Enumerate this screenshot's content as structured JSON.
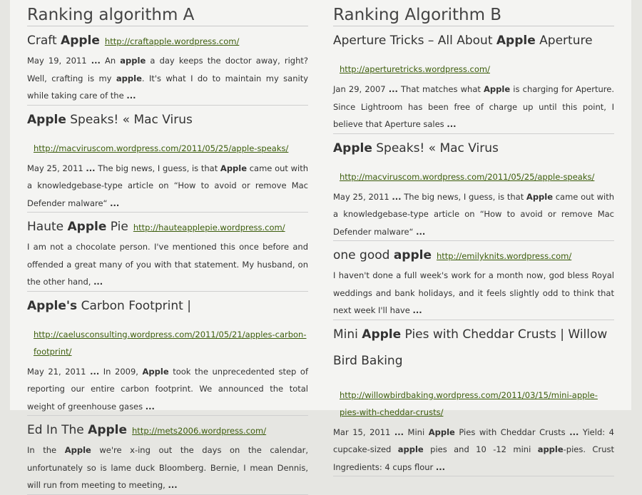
{
  "columns": [
    {
      "heading": "Ranking algorithm A",
      "results": [
        {
          "title_parts": [
            {
              "t": "Craft ",
              "b": false
            },
            {
              "t": "Apple",
              "b": true
            }
          ],
          "url": "http://craftapple.wordpress.com/",
          "url_block": false,
          "snippet_parts": [
            {
              "t": "May 19, 2011 ",
              "b": false
            },
            {
              "t": "...",
              "b": true
            },
            {
              "t": " An ",
              "b": false
            },
            {
              "t": "apple",
              "b": true
            },
            {
              "t": " a day keeps the doctor away, right? Well, crafting is my ",
              "b": false
            },
            {
              "t": "apple",
              "b": true
            },
            {
              "t": ". It's what I do to maintain my sanity while taking care of the ",
              "b": false
            },
            {
              "t": "...",
              "b": true
            }
          ]
        },
        {
          "title_parts": [
            {
              "t": "Apple",
              "b": true
            },
            {
              "t": " Speaks! « Mac Virus",
              "b": false
            }
          ],
          "url": "http://macviruscom.wordpress.com/2011/05/25/apple-speaks/",
          "url_block": true,
          "snippet_parts": [
            {
              "t": "May 25, 2011 ",
              "b": false
            },
            {
              "t": "...",
              "b": true
            },
            {
              "t": " The big news, I guess, is that ",
              "b": false
            },
            {
              "t": "Apple",
              "b": true
            },
            {
              "t": " came out with a knowledgebase-type article on “How to avoid or remove Mac Defender malware“ ",
              "b": false
            },
            {
              "t": "...",
              "b": true
            }
          ]
        },
        {
          "title_parts": [
            {
              "t": "Haute ",
              "b": false
            },
            {
              "t": "Apple",
              "b": true
            },
            {
              "t": " Pie",
              "b": false
            }
          ],
          "url": "http://hauteapplepie.wordpress.com/",
          "url_block": false,
          "snippet_parts": [
            {
              "t": "I am not a chocolate person. I've mentioned this once before and offended a great many of you with that statement. My husband, on the other hand, ",
              "b": false
            },
            {
              "t": "...",
              "b": true
            }
          ]
        },
        {
          "title_parts": [
            {
              "t": "Apple's",
              "b": true
            },
            {
              "t": " Carbon Footprint |",
              "b": false
            }
          ],
          "url": "http://caelusconsulting.wordpress.com/2011/05/21/apples-carbon-footprint/",
          "url_block": true,
          "snippet_parts": [
            {
              "t": "May 21, 2011 ",
              "b": false
            },
            {
              "t": "...",
              "b": true
            },
            {
              "t": " In 2009, ",
              "b": false
            },
            {
              "t": "Apple",
              "b": true
            },
            {
              "t": " took the unprecedented step of reporting our entire carbon footprint. We announced the total weight of greenhouse gases ",
              "b": false
            },
            {
              "t": "...",
              "b": true
            }
          ]
        },
        {
          "title_parts": [
            {
              "t": "Ed In The ",
              "b": false
            },
            {
              "t": "Apple",
              "b": true
            }
          ],
          "url": "http://mets2006.wordpress.com/",
          "url_block": false,
          "snippet_parts": [
            {
              "t": "In the ",
              "b": false
            },
            {
              "t": "Apple",
              "b": true
            },
            {
              "t": " we're x-ing out the days on the calendar, unfortunately so is lame duck Bloomberg. Bernie, I mean Dennis, will run from meeting to meeting, ",
              "b": false
            },
            {
              "t": "...",
              "b": true
            }
          ]
        }
      ]
    },
    {
      "heading": "Ranking Algorithm B",
      "results": [
        {
          "title_parts": [
            {
              "t": "Aperture Tricks – All About ",
              "b": false
            },
            {
              "t": "Apple",
              "b": true
            },
            {
              "t": " Aperture",
              "b": false
            }
          ],
          "url": "http://aperturetricks.wordpress.com/",
          "url_block": true,
          "snippet_parts": [
            {
              "t": "Jan 29, 2007 ",
              "b": false
            },
            {
              "t": "...",
              "b": true
            },
            {
              "t": " That matches what ",
              "b": false
            },
            {
              "t": "Apple",
              "b": true
            },
            {
              "t": " is charging for Aperture. Since Lightroom has been free of charge up until this point, I believe that Aperture sales ",
              "b": false
            },
            {
              "t": "...",
              "b": true
            }
          ]
        },
        {
          "title_parts": [
            {
              "t": "Apple",
              "b": true
            },
            {
              "t": " Speaks! « Mac Virus",
              "b": false
            }
          ],
          "url": "http://macviruscom.wordpress.com/2011/05/25/apple-speaks/",
          "url_block": true,
          "snippet_parts": [
            {
              "t": "May 25, 2011 ",
              "b": false
            },
            {
              "t": "...",
              "b": true
            },
            {
              "t": " The big news, I guess, is that ",
              "b": false
            },
            {
              "t": "Apple",
              "b": true
            },
            {
              "t": " came out with a knowledgebase-type article on “How to avoid or remove Mac Defender malware“ ",
              "b": false
            },
            {
              "t": "...",
              "b": true
            }
          ]
        },
        {
          "title_parts": [
            {
              "t": "one good ",
              "b": false
            },
            {
              "t": "apple",
              "b": true
            }
          ],
          "url": "http://emilyknits.wordpress.com/",
          "url_block": false,
          "snippet_parts": [
            {
              "t": "I haven't done a full week's work for a month now, god bless Royal weddings and bank holidays, and it feels slightly odd to think that next week I'll have ",
              "b": false
            },
            {
              "t": "...",
              "b": true
            }
          ]
        },
        {
          "title_parts": [
            {
              "t": "Mini ",
              "b": false
            },
            {
              "t": "Apple",
              "b": true
            },
            {
              "t": " Pies with Cheddar Crusts | Willow Bird Baking",
              "b": false
            }
          ],
          "url": "http://willowbirdbaking.wordpress.com/2011/03/15/mini-apple-pies-with-cheddar-crusts/",
          "url_block": true,
          "big_title": true,
          "snippet_parts": [
            {
              "t": "Mar 15, 2011 ",
              "b": false
            },
            {
              "t": "...",
              "b": true
            },
            {
              "t": " Mini ",
              "b": false
            },
            {
              "t": "Apple",
              "b": true
            },
            {
              "t": " Pies with Cheddar Crusts ",
              "b": false
            },
            {
              "t": "...",
              "b": true
            },
            {
              "t": " Yield: 4 cupcake-sized ",
              "b": false
            },
            {
              "t": "apple",
              "b": true
            },
            {
              "t": " pies and 10 -12 mini ",
              "b": false
            },
            {
              "t": "apple",
              "b": true
            },
            {
              "t": "-pies. Crust Ingredients: 4 cups flour ",
              "b": false
            },
            {
              "t": "...",
              "b": true
            }
          ]
        }
      ]
    }
  ]
}
